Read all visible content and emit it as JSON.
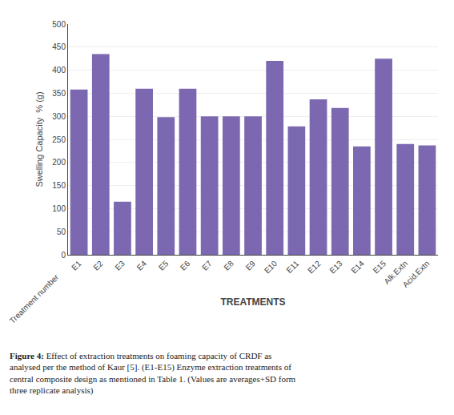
{
  "chart_data": {
    "type": "bar",
    "categories": [
      "E1",
      "E2",
      "E3",
      "E4",
      "E5",
      "E6",
      "E7",
      "E8",
      "E9",
      "E10",
      "E11",
      "E12",
      "E13",
      "E14",
      "E15",
      "Alk.Extn",
      "Acid.Extn"
    ],
    "values": [
      358,
      435,
      115,
      360,
      298,
      360,
      300,
      300,
      300,
      420,
      278,
      337,
      318,
      235,
      425,
      240,
      237
    ],
    "color": "#7B68B0",
    "ylabel": "Swelling Capacity  % (g)",
    "xlabel": "TREATMENTS",
    "annotations": [
      "Treatment number",
      "Figure 4:",
      "Effect of extraction treatments on foaming capacity of CRDF as analysed per the method of Kaur [5]. (E1-E15) Enzyme extraction treatments of central composite design as mentioned in Table 1. (Values are averages+SD form three replicate analysis)"
    ],
    "ylim": [
      0,
      500
    ],
    "yticks": [
      0,
      50,
      100,
      150,
      200,
      250,
      300,
      350,
      400,
      450,
      500
    ],
    "grid": true
  }
}
